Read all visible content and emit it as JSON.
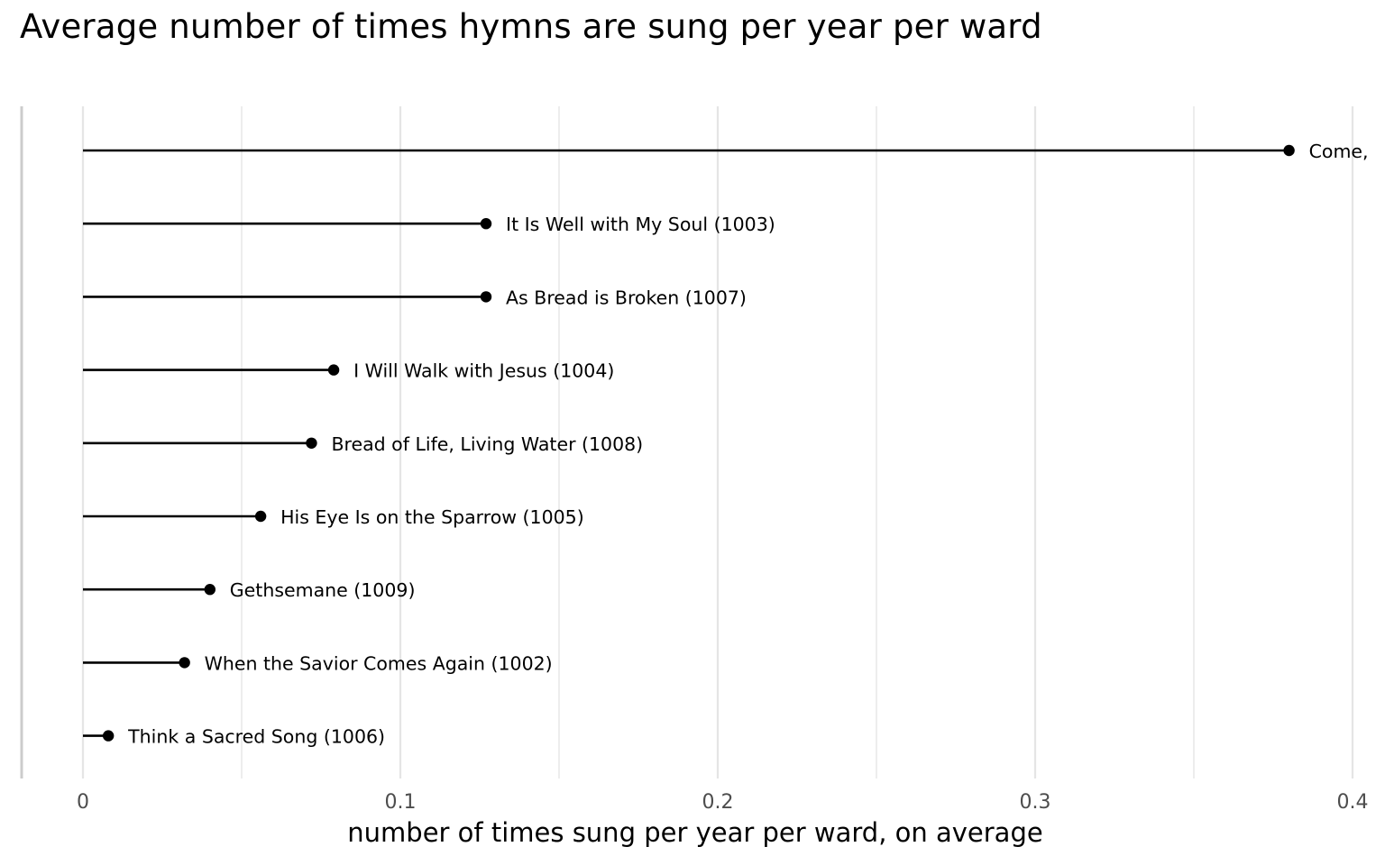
{
  "chart_data": {
    "type": "lollipop",
    "title": "Average number of times hymns are sung per year per ward",
    "xlabel": "number of times sung per year per ward, on average",
    "ylabel": "",
    "xlim": [
      0,
      0.4
    ],
    "x_ticks": [
      0,
      0.1,
      0.2,
      0.3,
      0.4
    ],
    "x_tick_labels": [
      "0",
      "0.1",
      "0.2",
      "0.3",
      "0.4"
    ],
    "grid": true,
    "legend": "none",
    "points": [
      {
        "label": "Come,",
        "value": 0.38
      },
      {
        "label": "It Is Well with My Soul (1003)",
        "value": 0.127
      },
      {
        "label": "As Bread is Broken (1007)",
        "value": 0.127
      },
      {
        "label": "I Will Walk with Jesus (1004)",
        "value": 0.079
      },
      {
        "label": "Bread of Life, Living Water (1008)",
        "value": 0.072
      },
      {
        "label": "His Eye Is on the Sparrow (1005)",
        "value": 0.056
      },
      {
        "label": "Gethsemane (1009)",
        "value": 0.04
      },
      {
        "label": "When the Savior Comes Again (1002)",
        "value": 0.032
      },
      {
        "label": "Think a Sacred Song (1006)",
        "value": 0.008
      }
    ]
  },
  "colors": {
    "stem": "#000000",
    "point": "#000000",
    "grid": "#e5e5e5",
    "axis_line": "#cccccc",
    "tick_label": "#4d4d4d",
    "text": "#000000"
  }
}
